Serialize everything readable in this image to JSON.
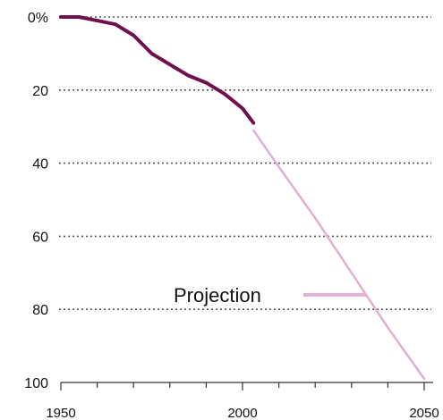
{
  "chart_data": {
    "type": "line",
    "title": "",
    "xlabel": "",
    "ylabel": "",
    "xlim": [
      1950,
      2050
    ],
    "ylim": [
      0,
      100
    ],
    "y_inverted": true,
    "grid": true,
    "yticks": [
      {
        "value": 0,
        "label": "0%"
      },
      {
        "value": 20,
        "label": "20"
      },
      {
        "value": 40,
        "label": "40"
      },
      {
        "value": 60,
        "label": "60"
      },
      {
        "value": 80,
        "label": "80"
      },
      {
        "value": 100,
        "label": "100"
      }
    ],
    "xticks": [
      {
        "value": 1950,
        "label": "1950"
      },
      {
        "value": 2000,
        "label": "2000"
      },
      {
        "value": 2050,
        "label": "2050"
      }
    ],
    "series": [
      {
        "color": "#6e0f4e",
        "x": [
          1950,
          1955,
          1960,
          1965,
          1970,
          1975,
          1980,
          1985,
          1990,
          1995,
          2000,
          2003
        ],
        "y": [
          0,
          0,
          1,
          2,
          5,
          10,
          13,
          16,
          18,
          21,
          25,
          29
        ]
      },
      {
        "color": "#dcb1d1",
        "x": [
          2003,
          2010,
          2020,
          2030,
          2040,
          2050
        ],
        "y": [
          31,
          41,
          55,
          70,
          85,
          99
        ]
      }
    ],
    "annotations": [
      {
        "text": "Projection",
        "target_series": 1,
        "target_x": 2034
      }
    ]
  }
}
